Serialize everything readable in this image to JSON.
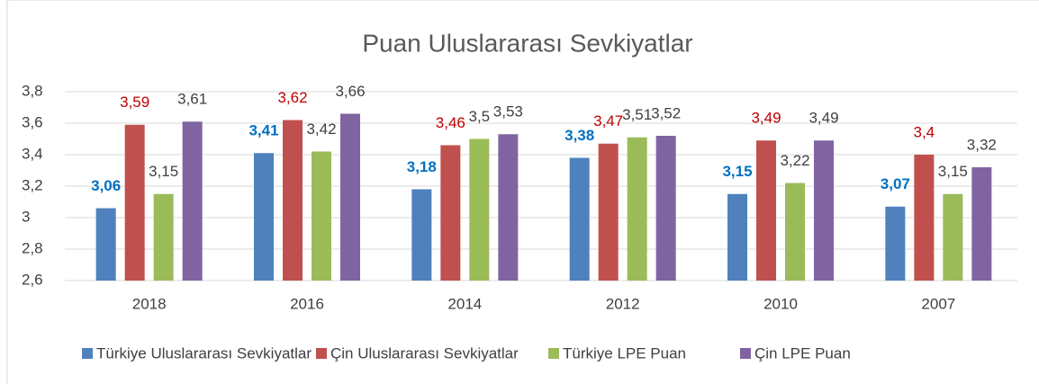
{
  "chart_data": {
    "type": "bar",
    "title": "Puan Uluslararası Sevkiyatlar",
    "categories": [
      "2018",
      "2016",
      "2014",
      "2012",
      "2010",
      "2007"
    ],
    "series": [
      {
        "name": "Türkiye Uluslararası Sevkiyatlar",
        "color": "#4f81bd",
        "label_color": "#0070c0",
        "label_bold": true,
        "values": [
          3.06,
          3.41,
          3.18,
          3.38,
          3.15,
          3.07
        ],
        "value_labels": [
          "3,06",
          "3,41",
          "3,18",
          "3,38",
          "3,15",
          "3,07"
        ]
      },
      {
        "name": "Çin Uluslararası Sevkiyatlar",
        "color": "#c0504d",
        "label_color": "#c00000",
        "label_bold": false,
        "values": [
          3.59,
          3.62,
          3.46,
          3.47,
          3.49,
          3.4
        ],
        "value_labels": [
          "3,59",
          "3,62",
          "3,46",
          "3,47",
          "3,49",
          "3,4"
        ]
      },
      {
        "name": "Türkiye LPE Puan",
        "color": "#9bbb59",
        "label_color": "#404040",
        "label_bold": false,
        "values": [
          3.15,
          3.42,
          3.5,
          3.51,
          3.22,
          3.15
        ],
        "value_labels": [
          "3,15",
          "3,42",
          "3,5",
          "3,51",
          "3,22",
          "3,15"
        ]
      },
      {
        "name": "Çin LPE Puan",
        "color": "#8064a2",
        "label_color": "#404040",
        "label_bold": false,
        "values": [
          3.61,
          3.66,
          3.53,
          3.52,
          3.49,
          3.32
        ],
        "value_labels": [
          "3,61",
          "3,66",
          "3,53",
          "3,52",
          "3,49",
          "3,32"
        ]
      }
    ],
    "ylim": [
      2.6,
      3.8
    ],
    "yticks": [
      {
        "value": 2.6,
        "label": "2,6"
      },
      {
        "value": 2.8,
        "label": "2,8"
      },
      3,
      {
        "value": 3.2,
        "label": "3,2"
      },
      {
        "value": 3.4,
        "label": "3,4"
      },
      {
        "value": 3.6,
        "label": "3,6"
      },
      {
        "value": 3.8,
        "label": "3,8"
      }
    ],
    "grid": true,
    "legend": "bottom"
  }
}
